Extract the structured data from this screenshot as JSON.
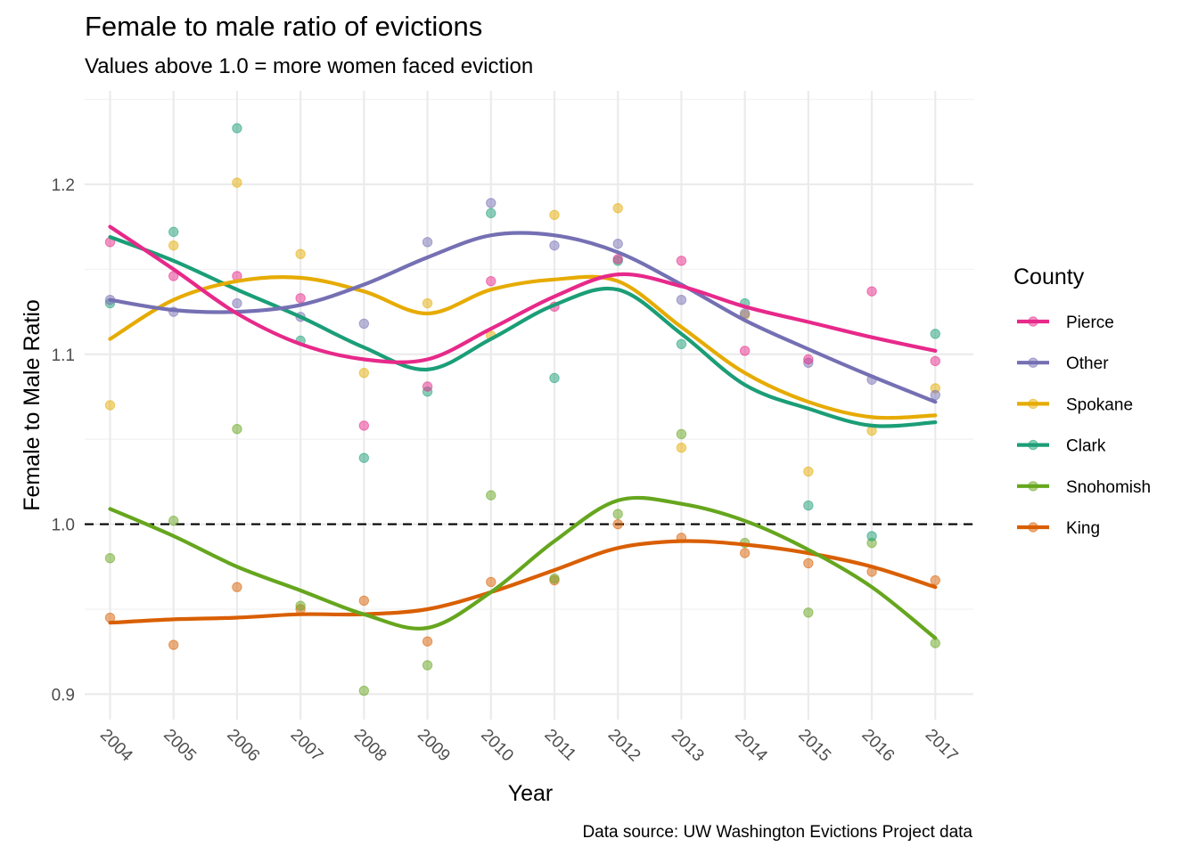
{
  "chart_data": {
    "type": "scatter",
    "title": "Female to male ratio of evictions",
    "subtitle": "Values above 1.0 = more women faced eviction",
    "xlabel": "Year",
    "ylabel": "Female to Male Ratio",
    "caption": "Data source: UW Washington Evictions Project data",
    "xlim": [
      2003.6,
      2017.6
    ],
    "ylim": [
      0.885,
      1.255
    ],
    "x_ticks": [
      2004,
      2005,
      2006,
      2007,
      2008,
      2009,
      2010,
      2011,
      2012,
      2013,
      2014,
      2015,
      2016,
      2017
    ],
    "x_tick_labels": [
      "2004",
      "2005",
      "2006",
      "2007",
      "2008",
      "2009",
      "2010",
      "2011",
      "2012",
      "2013",
      "2014",
      "2015",
      "2016",
      "2017"
    ],
    "y_ticks": [
      0.9,
      1.0,
      1.1,
      1.2
    ],
    "y_tick_labels": [
      "0.9",
      "1.0",
      "1.1",
      "1.2"
    ],
    "y_minor_ticks": [
      0.95,
      1.05,
      1.15,
      1.25
    ],
    "reference_line": {
      "y": 1.0,
      "style": "dashed"
    },
    "grid": true,
    "legend": {
      "title": "County",
      "position": "right"
    },
    "x": [
      2004,
      2005,
      2006,
      2007,
      2008,
      2009,
      2010,
      2011,
      2012,
      2013,
      2014,
      2015,
      2016,
      2017
    ],
    "series": [
      {
        "name": "Pierce",
        "color": "#e7298a",
        "points": [
          1.166,
          1.146,
          1.146,
          1.133,
          1.058,
          1.081,
          1.143,
          1.128,
          1.156,
          1.155,
          1.102,
          1.097,
          1.137,
          1.096
        ],
        "smooth": [
          1.175,
          1.15,
          1.124,
          1.106,
          1.097,
          1.097,
          1.115,
          1.134,
          1.147,
          1.14,
          1.128,
          1.119,
          1.11,
          1.102
        ]
      },
      {
        "name": "Other",
        "color": "#7570b3",
        "points": [
          1.132,
          1.125,
          1.13,
          1.122,
          1.118,
          1.166,
          1.189,
          1.164,
          1.165,
          1.132,
          1.124,
          1.095,
          1.085,
          1.076
        ],
        "smooth": [
          1.132,
          1.126,
          1.125,
          1.129,
          1.141,
          1.157,
          1.17,
          1.17,
          1.16,
          1.141,
          1.12,
          1.103,
          1.087,
          1.072
        ]
      },
      {
        "name": "Spokane",
        "color": "#e6ab02",
        "points": [
          1.07,
          1.164,
          1.201,
          1.159,
          1.089,
          1.13,
          1.111,
          1.182,
          1.186,
          1.045,
          1.123,
          1.031,
          1.055,
          1.08
        ],
        "smooth": [
          1.109,
          1.132,
          1.143,
          1.145,
          1.137,
          1.124,
          1.138,
          1.144,
          1.143,
          1.116,
          1.089,
          1.072,
          1.063,
          1.064
        ]
      },
      {
        "name": "Clark",
        "color": "#1b9e77",
        "points": [
          1.13,
          1.172,
          1.233,
          1.108,
          1.039,
          1.078,
          1.183,
          1.086,
          1.155,
          1.106,
          1.13,
          1.011,
          0.993,
          1.112
        ],
        "smooth": [
          1.169,
          1.155,
          1.138,
          1.122,
          1.104,
          1.091,
          1.109,
          1.129,
          1.138,
          1.112,
          1.082,
          1.068,
          1.058,
          1.06
        ]
      },
      {
        "name": "Snohomish",
        "color": "#66a61e",
        "points": [
          0.98,
          1.002,
          1.056,
          0.952,
          0.902,
          0.917,
          1.017,
          0.968,
          1.006,
          1.053,
          0.989,
          0.948,
          0.989,
          0.93
        ],
        "smooth": [
          1.009,
          0.993,
          0.975,
          0.961,
          0.947,
          0.939,
          0.96,
          0.99,
          1.014,
          1.012,
          1.002,
          0.985,
          0.963,
          0.933
        ]
      },
      {
        "name": "King",
        "color": "#d95f02",
        "points": [
          0.945,
          0.929,
          0.963,
          0.95,
          0.955,
          0.931,
          0.966,
          0.967,
          1.0,
          0.992,
          0.983,
          0.977,
          0.972,
          0.967
        ],
        "smooth": [
          0.942,
          0.944,
          0.945,
          0.947,
          0.947,
          0.95,
          0.96,
          0.973,
          0.986,
          0.99,
          0.988,
          0.983,
          0.975,
          0.963
        ]
      }
    ]
  }
}
